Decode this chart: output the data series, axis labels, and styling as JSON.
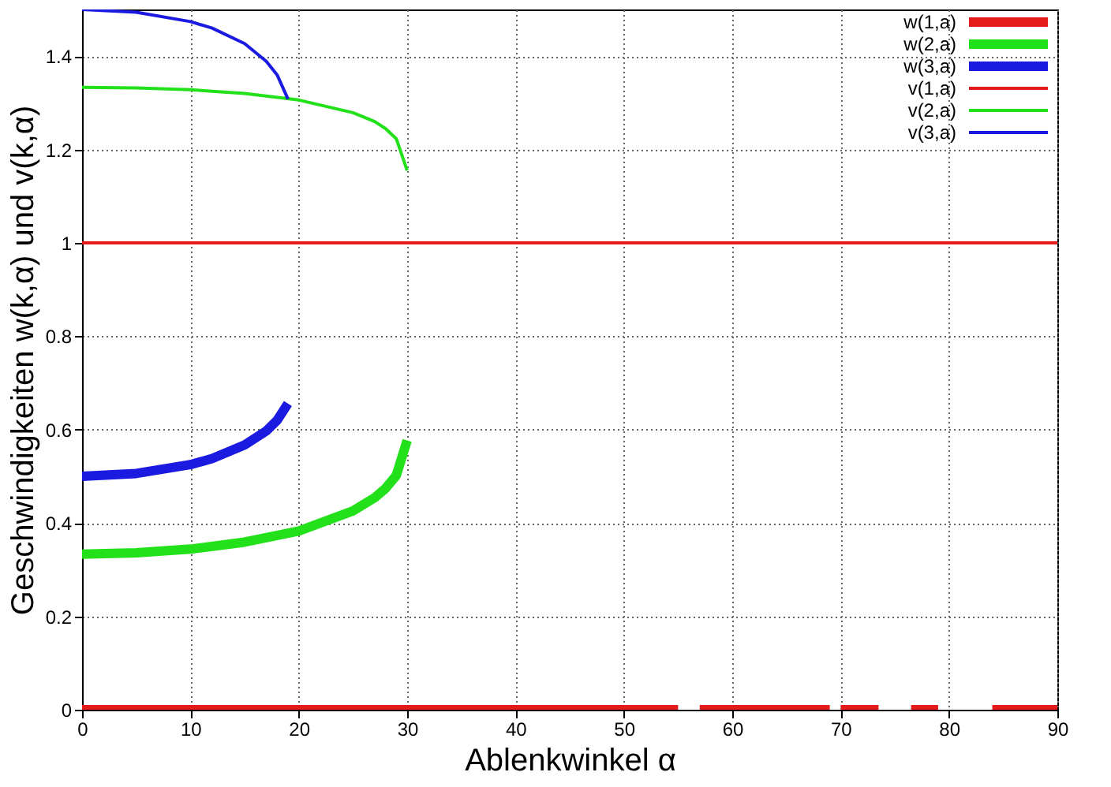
{
  "chart_data": {
    "type": "line",
    "xlabel": "Ablenkwinkel α",
    "ylabel": "Geschwindigkeiten w(k,α) und  v(k,α)",
    "xlim": [
      0,
      90
    ],
    "ylim": [
      0,
      1.5
    ],
    "xticks": [
      0,
      10,
      20,
      30,
      40,
      50,
      60,
      70,
      80,
      90
    ],
    "yticks": [
      0,
      0.2,
      0.4,
      0.6,
      0.8,
      1,
      1.2,
      1.4
    ],
    "grid": true,
    "legend": "top right",
    "line_style": "solid",
    "marker": "none",
    "series": [
      {
        "name": "w(1,a)",
        "color": "#e41a1c",
        "x": [
          0,
          55,
          56,
          57,
          69,
          69.5,
          70,
          73.5,
          75,
          76.5,
          79,
          81,
          84,
          90
        ],
        "values": [
          0,
          0,
          null,
          0,
          0,
          null,
          0,
          0,
          null,
          0,
          0,
          null,
          0,
          0
        ]
      },
      {
        "name": "w(2,a)",
        "color": "#22e01a",
        "x": [
          0,
          5,
          10,
          15,
          20,
          25,
          27,
          28,
          29,
          30
        ],
        "values": [
          0.333,
          0.336,
          0.344,
          0.359,
          0.383,
          0.426,
          0.454,
          0.474,
          0.502,
          0.577
        ]
      },
      {
        "name": "w(3,a)",
        "color": "#1a1ae0",
        "x": [
          0,
          5,
          10,
          12,
          15,
          17,
          18,
          19
        ],
        "values": [
          0.5,
          0.506,
          0.525,
          0.538,
          0.567,
          0.597,
          0.62,
          0.656
        ]
      },
      {
        "name": "v(1,a)",
        "color": "#e41a1c",
        "x": [
          0,
          90
        ],
        "values": [
          1,
          1
        ]
      },
      {
        "name": "v(2,a)",
        "color": "#22e01a",
        "x": [
          0,
          5,
          10,
          15,
          20,
          25,
          27,
          28,
          29,
          30
        ],
        "values": [
          1.333,
          1.332,
          1.328,
          1.32,
          1.306,
          1.279,
          1.26,
          1.245,
          1.223,
          1.155
        ]
      },
      {
        "name": "v(3,a)",
        "color": "#1a1ae0",
        "x": [
          0,
          5,
          10,
          12,
          15,
          17,
          18,
          19
        ],
        "values": [
          1.5,
          1.494,
          1.474,
          1.46,
          1.427,
          1.389,
          1.36,
          1.308
        ]
      }
    ]
  }
}
